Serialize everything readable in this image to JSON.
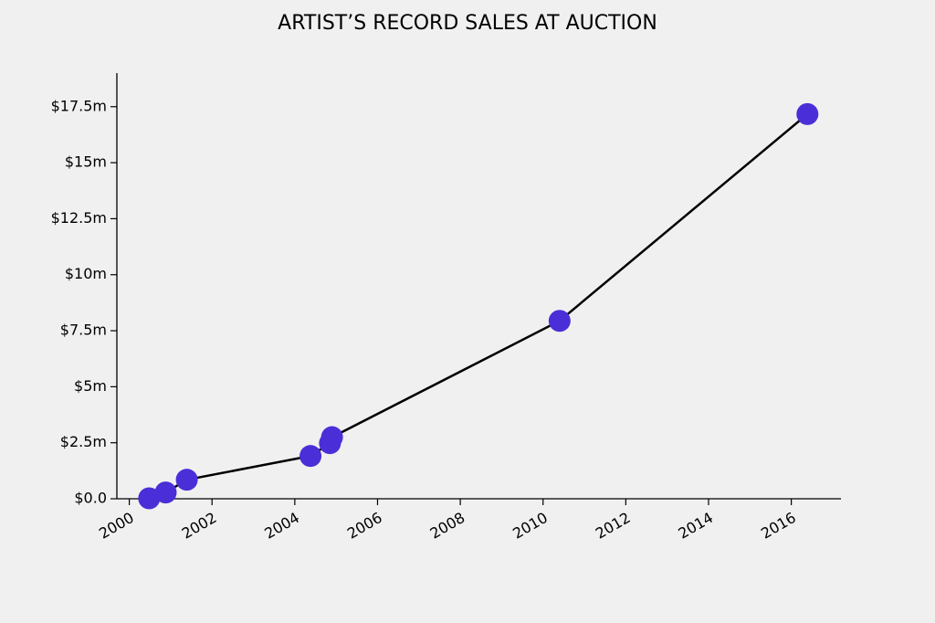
{
  "chart_data": {
    "type": "line",
    "title": "ARTIST’S RECORD SALES AT AUCTION",
    "x": [
      2000.48,
      2000.88,
      2001.39,
      2004.38,
      2004.85,
      2004.9,
      2010.4,
      2016.39
    ],
    "series": [
      {
        "color": "#4a2fd8",
        "values": [
          0.02,
          0.28,
          0.85,
          1.91,
          2.48,
          2.75,
          7.94,
          17.17
        ]
      }
    ],
    "xlim": [
      1999.7,
      2017.2
    ],
    "xticks": [
      2000,
      2002,
      2004,
      2006,
      2008,
      2010,
      2012,
      2014,
      2016
    ],
    "ylim": [
      0,
      19
    ],
    "yticks": [
      {
        "value": 0,
        "label": "$0.0"
      },
      {
        "value": 2.5,
        "label": "$2.5m"
      },
      {
        "value": 5,
        "label": "$5m"
      },
      {
        "value": 7.5,
        "label": "$7.5m"
      },
      {
        "value": 10,
        "label": "$10m"
      },
      {
        "value": 12.5,
        "label": "$12.5m"
      },
      {
        "value": 15,
        "label": "$15m"
      },
      {
        "value": 17.5,
        "label": "$17.5m"
      }
    ],
    "grid": false
  }
}
